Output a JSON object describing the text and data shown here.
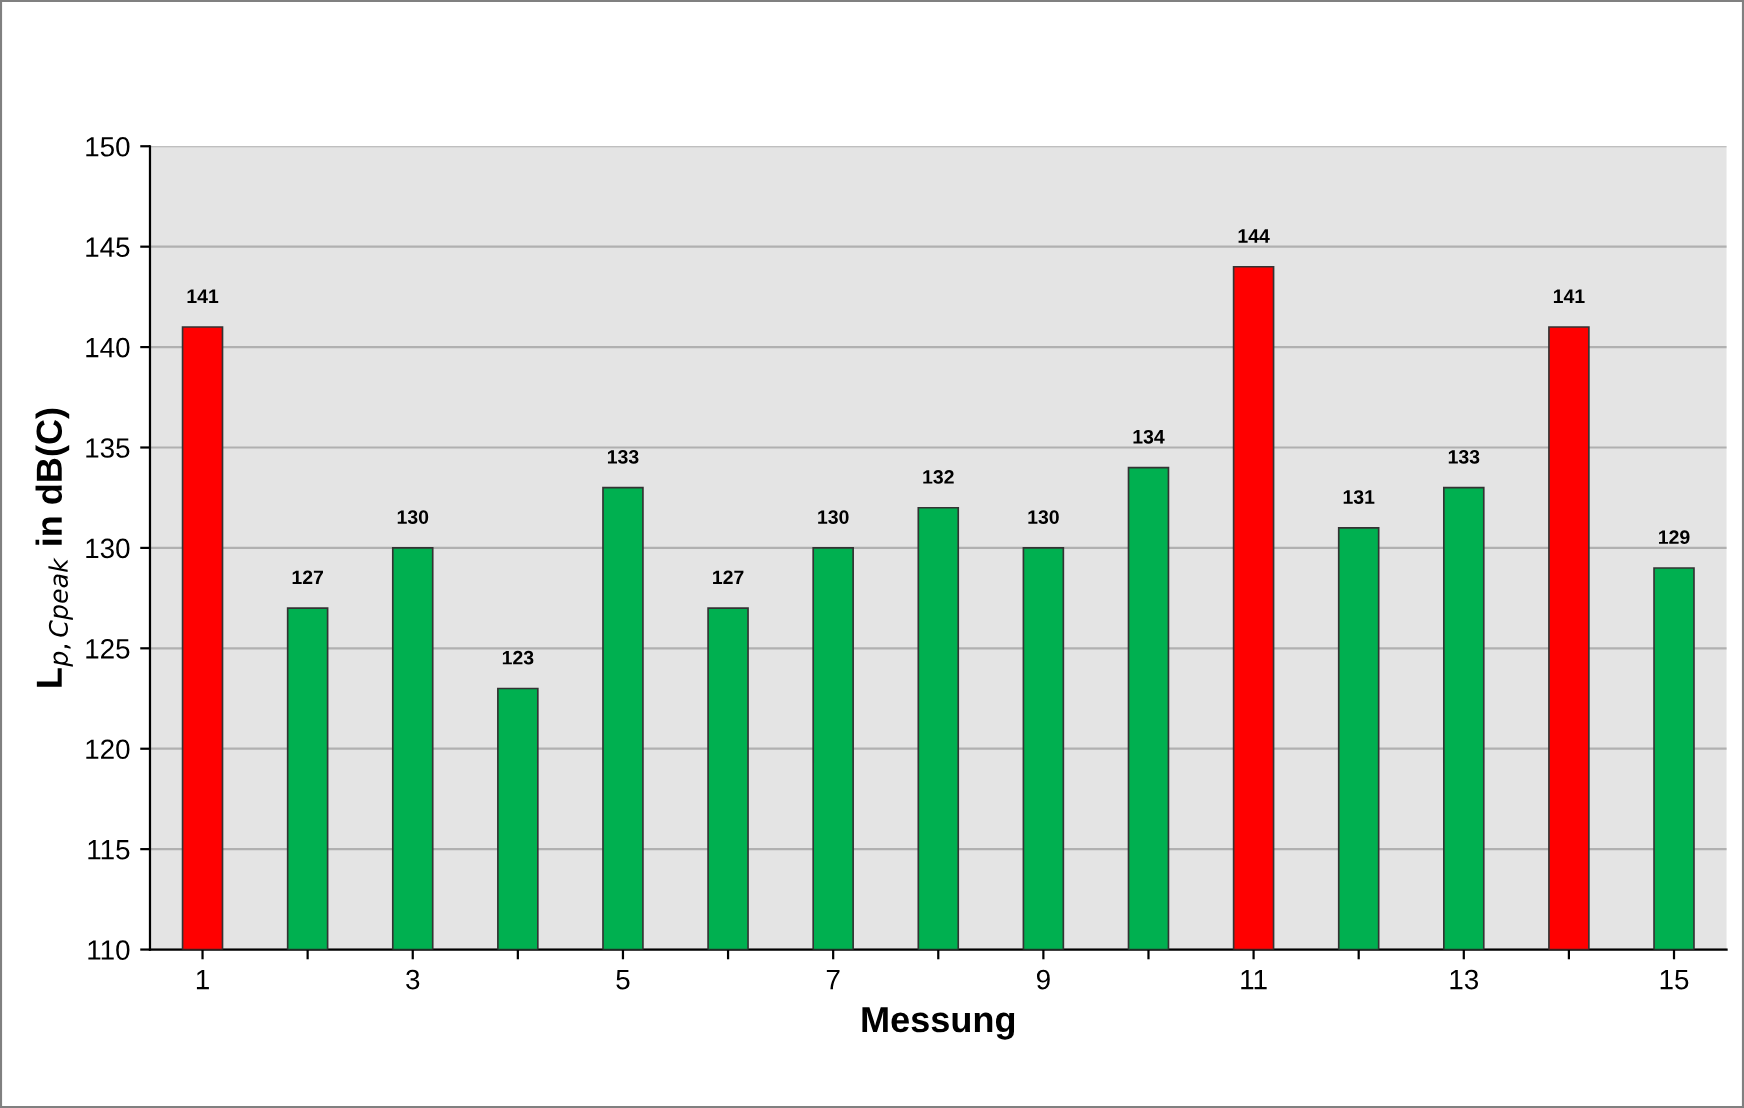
{
  "chart_data": {
    "type": "bar",
    "xlabel": "Messung",
    "ylabel": "L$_{p,Cpeak}$ in dB(C)",
    "categories": [
      "1",
      null,
      "3",
      null,
      "5",
      null,
      "7",
      null,
      "9",
      null,
      "11",
      null,
      "13",
      null,
      "15"
    ],
    "values": [
      141,
      127,
      130,
      123,
      133,
      127,
      130,
      132,
      130,
      134,
      144,
      131,
      133,
      141,
      129
    ],
    "colors": [
      "#ff0000",
      "#00b050",
      "#00b050",
      "#00b050",
      "#00b050",
      "#00b050",
      "#00b050",
      "#00b050",
      "#00b050",
      "#00b050",
      "#ff0000",
      "#00b050",
      "#00b050",
      "#ff0000",
      "#00b050"
    ],
    "ylim": [
      110,
      150
    ],
    "yticks": [
      110,
      115,
      120,
      125,
      130,
      135,
      140,
      145,
      150
    ],
    "grid": "y",
    "data_labels": true,
    "legend": false
  }
}
